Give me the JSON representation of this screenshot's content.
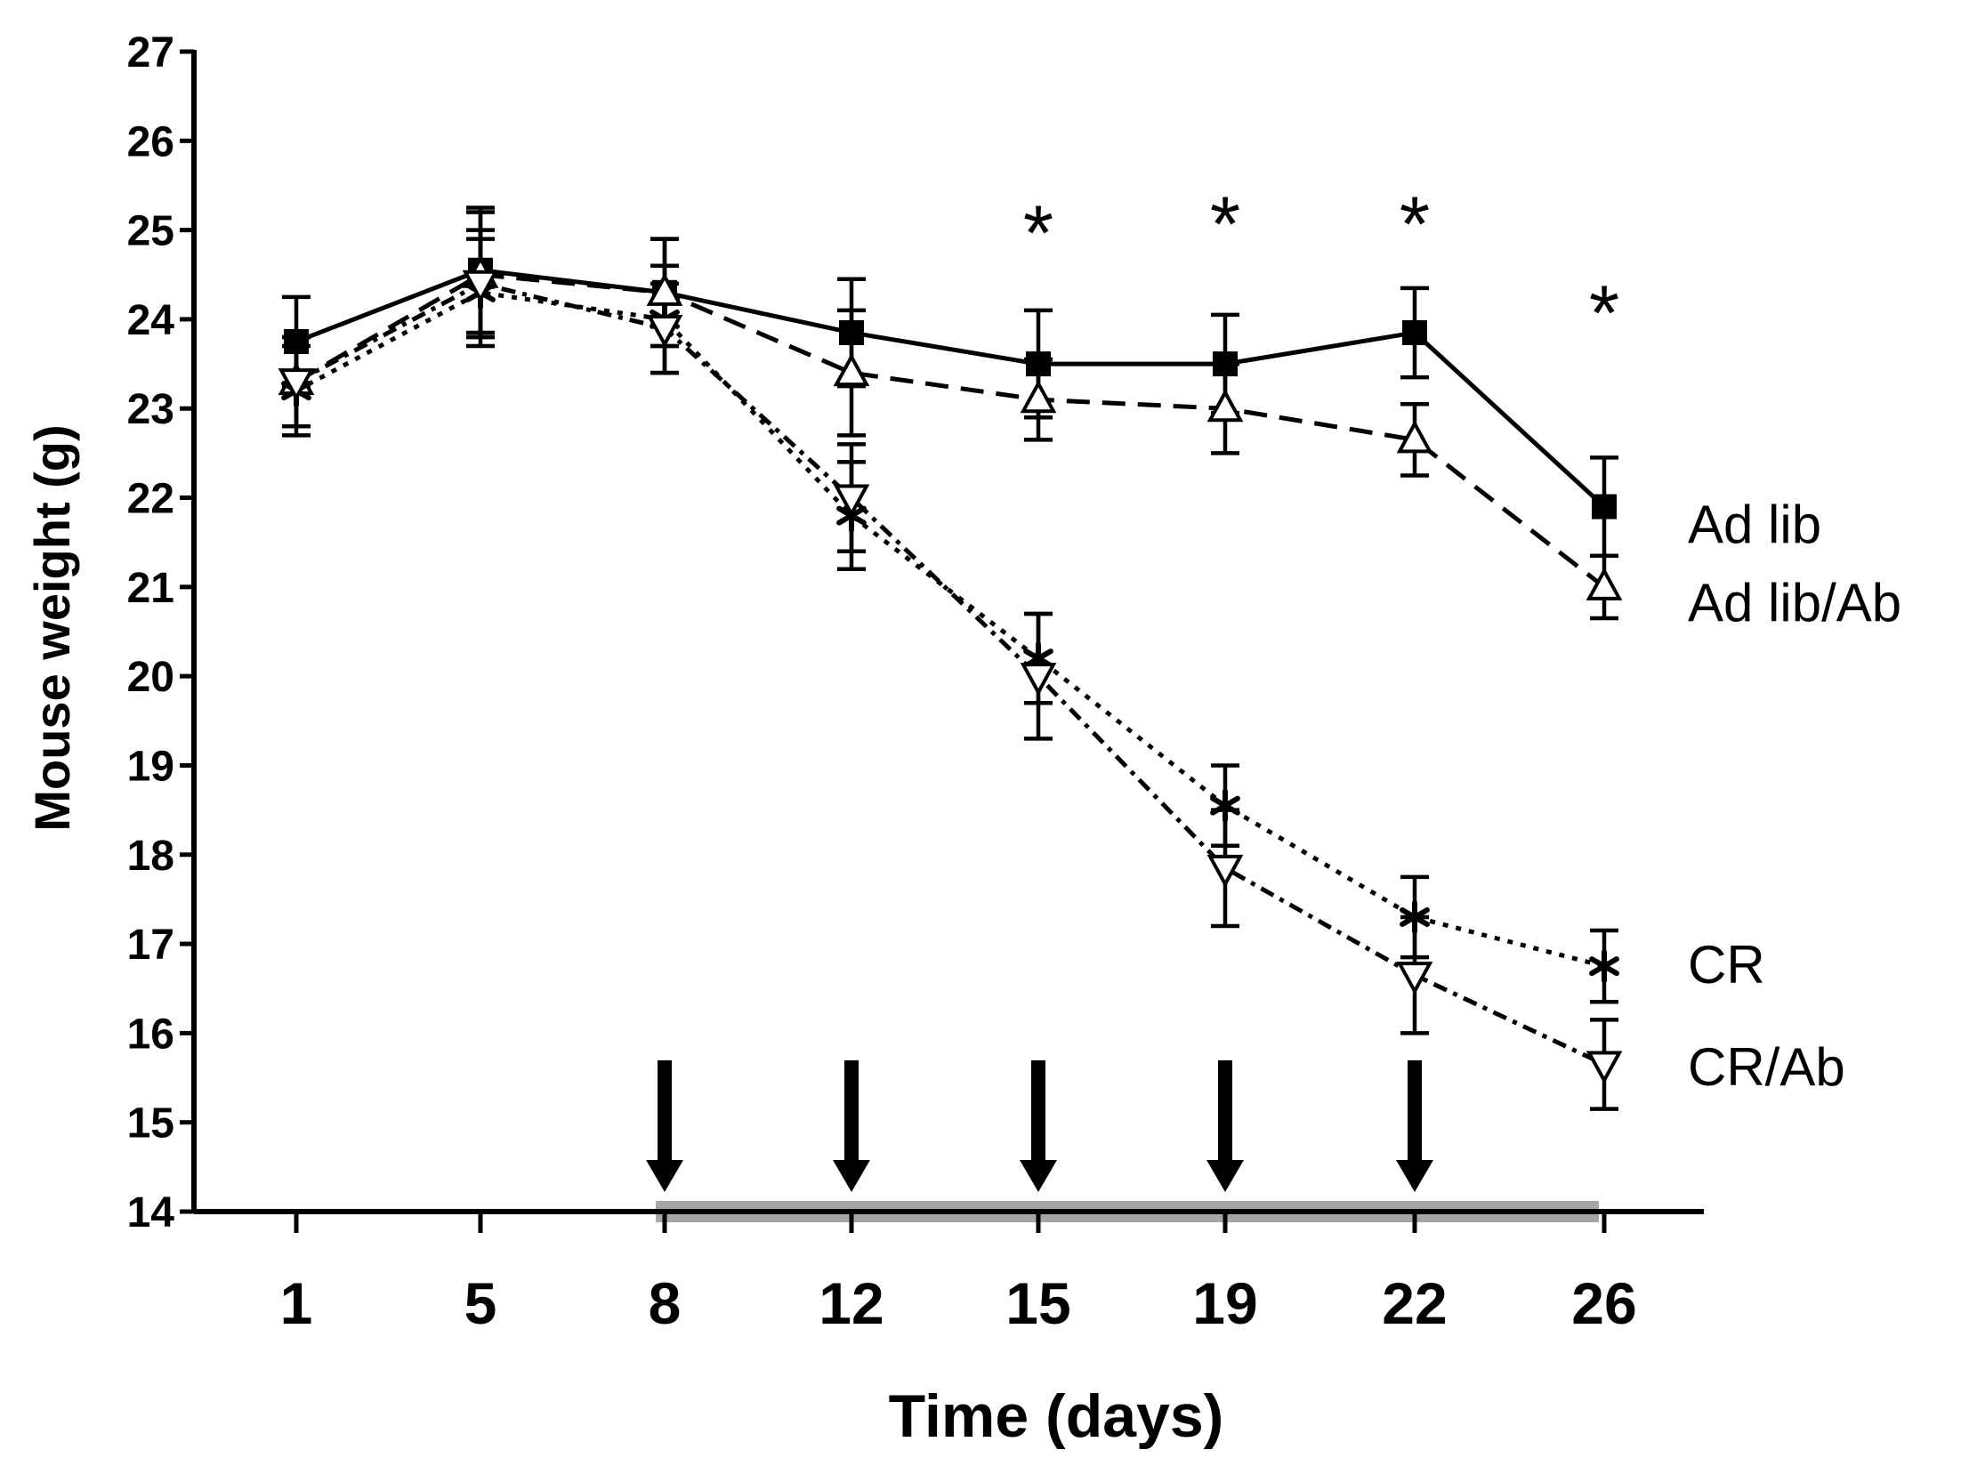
{
  "chart_data": {
    "type": "line",
    "title": "",
    "xlabel": "Time (days)",
    "ylabel": "Mouse weight (g)",
    "x": [
      1,
      5,
      8,
      12,
      15,
      19,
      22,
      26
    ],
    "x_tick_labels": [
      "1",
      "5",
      "8",
      "12",
      "15",
      "19",
      "22",
      "26"
    ],
    "ylim": [
      14,
      27
    ],
    "y_ticks": [
      14,
      15,
      16,
      17,
      18,
      19,
      20,
      21,
      22,
      23,
      24,
      25,
      26,
      27
    ],
    "y_tick_labels": [
      "14",
      "15",
      "16",
      "17",
      "18",
      "19",
      "20",
      "21",
      "22",
      "23",
      "24",
      "25",
      "26",
      "27"
    ],
    "grid": false,
    "series": [
      {
        "name": "Ad lib",
        "label": "Ad lib",
        "values": [
          23.75,
          24.55,
          24.3,
          23.85,
          23.5,
          23.5,
          23.85,
          21.9
        ],
        "errors": [
          0.5,
          0.7,
          0.6,
          0.6,
          0.6,
          0.55,
          0.5,
          0.55
        ],
        "line_style": "solid",
        "marker": "filled-square"
      },
      {
        "name": "Ad lib/Ab",
        "label": "Ad lib/Ab",
        "values": [
          23.3,
          24.5,
          24.3,
          23.4,
          23.1,
          23.0,
          22.65,
          21.0
        ],
        "errors": [
          0.5,
          0.7,
          0.6,
          0.7,
          0.45,
          0.5,
          0.4,
          0.35
        ],
        "line_style": "dashed",
        "marker": "open-triangle-up"
      },
      {
        "name": "CR",
        "label": "CR",
        "values": [
          23.2,
          24.3,
          24.0,
          21.8,
          20.2,
          18.55,
          17.3,
          16.75
        ],
        "errors": [
          0.5,
          0.6,
          0.6,
          0.6,
          0.5,
          0.45,
          0.45,
          0.4
        ],
        "line_style": "dotted",
        "marker": "asterisk"
      },
      {
        "name": "CR/Ab",
        "label": "CR/Ab",
        "values": [
          23.3,
          24.4,
          23.9,
          22.0,
          20.0,
          17.85,
          16.65,
          15.65
        ],
        "errors": [
          0.5,
          0.6,
          0.5,
          0.6,
          0.7,
          0.65,
          0.65,
          0.5
        ],
        "line_style": "dash-dot",
        "marker": "open-triangle-down"
      }
    ],
    "significance_markers": [
      {
        "x": 15,
        "symbol": "*"
      },
      {
        "x": 19,
        "symbol": "*"
      },
      {
        "x": 22,
        "symbol": "*"
      },
      {
        "x": 26,
        "symbol": "*"
      }
    ],
    "treatment_arrows": [
      8,
      12,
      15,
      19,
      22
    ],
    "treatment_period": [
      8,
      26
    ],
    "colors": {
      "ink": "#000000",
      "treatment_bar": "#a6a6a6",
      "background": "#ffffff"
    }
  }
}
